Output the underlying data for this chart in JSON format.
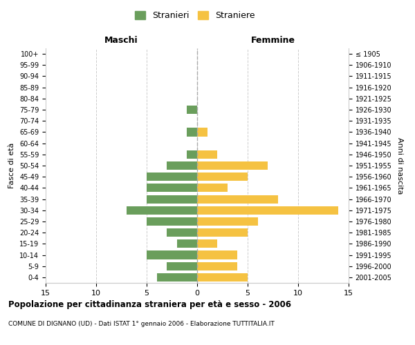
{
  "age_groups": [
    "100+",
    "95-99",
    "90-94",
    "85-89",
    "80-84",
    "75-79",
    "70-74",
    "65-69",
    "60-64",
    "55-59",
    "50-54",
    "45-49",
    "40-44",
    "35-39",
    "30-34",
    "25-29",
    "20-24",
    "15-19",
    "10-14",
    "5-9",
    "0-4"
  ],
  "birth_years": [
    "≤ 1905",
    "1906-1910",
    "1911-1915",
    "1916-1920",
    "1921-1925",
    "1926-1930",
    "1931-1935",
    "1936-1940",
    "1941-1945",
    "1946-1950",
    "1951-1955",
    "1956-1960",
    "1961-1965",
    "1966-1970",
    "1971-1975",
    "1976-1980",
    "1981-1985",
    "1986-1990",
    "1991-1995",
    "1996-2000",
    "2001-2005"
  ],
  "males": [
    0,
    0,
    0,
    0,
    0,
    1,
    0,
    1,
    0,
    1,
    3,
    5,
    5,
    5,
    7,
    5,
    3,
    2,
    5,
    3,
    4
  ],
  "females": [
    0,
    0,
    0,
    0,
    0,
    0,
    0,
    1,
    0,
    2,
    7,
    5,
    3,
    8,
    14,
    6,
    5,
    2,
    4,
    4,
    5
  ],
  "male_color": "#6a9e5c",
  "female_color": "#f5c242",
  "title": "Popolazione per cittadinanza straniera per età e sesso - 2006",
  "subtitle": "COMUNE DI DIGNANO (UD) - Dati ISTAT 1° gennaio 2006 - Elaborazione TUTTITALIA.IT",
  "xlabel_left": "Maschi",
  "xlabel_right": "Femmine",
  "ylabel_left": "Fasce di età",
  "ylabel_right": "Anni di nascita",
  "legend_male": "Stranieri",
  "legend_female": "Straniere",
  "xlim": 15,
  "background_color": "#ffffff",
  "grid_color": "#cccccc",
  "bar_height": 0.75
}
